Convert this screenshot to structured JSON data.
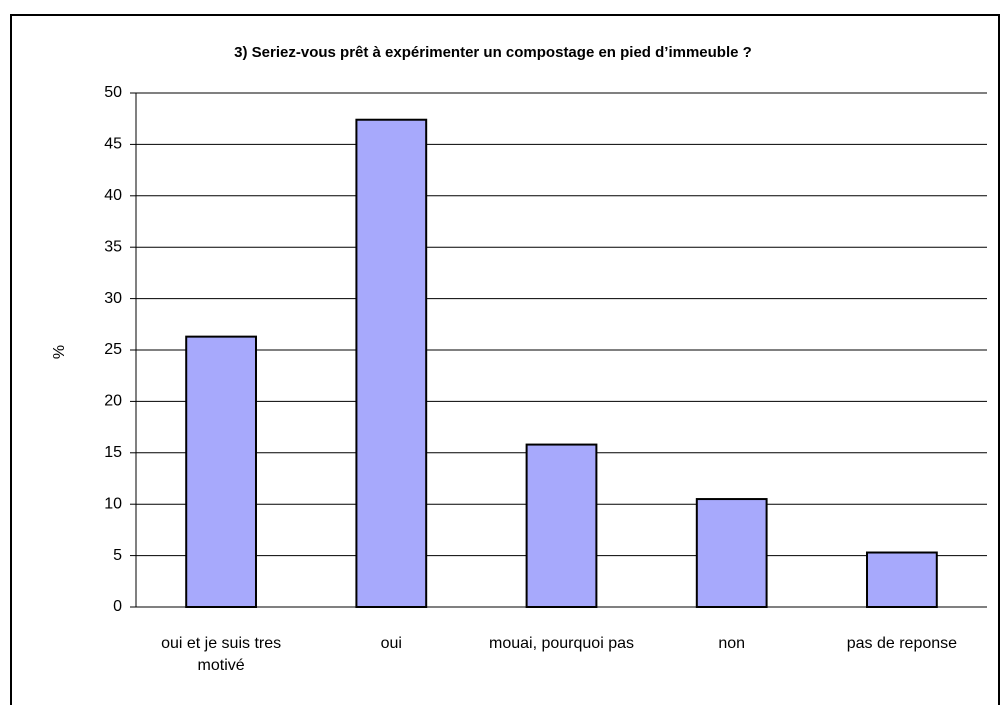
{
  "chart_data": {
    "type": "bar",
    "title": "3) Seriez-vous prêt à expérimenter un compostage en pied d’immeuble ?",
    "y_label": "%",
    "categories": [
      "oui et je suis tres motivé",
      "oui",
      "mouai, pourquoi pas",
      "non",
      "pas de reponse"
    ],
    "values": [
      26.3,
      47.4,
      15.8,
      10.5,
      5.3
    ],
    "color": "#a7a9fc",
    "ylim": [
      0,
      50
    ],
    "yticks": [
      0,
      5,
      10,
      15,
      20,
      25,
      30,
      35,
      40,
      45,
      50
    ],
    "grid": true
  }
}
